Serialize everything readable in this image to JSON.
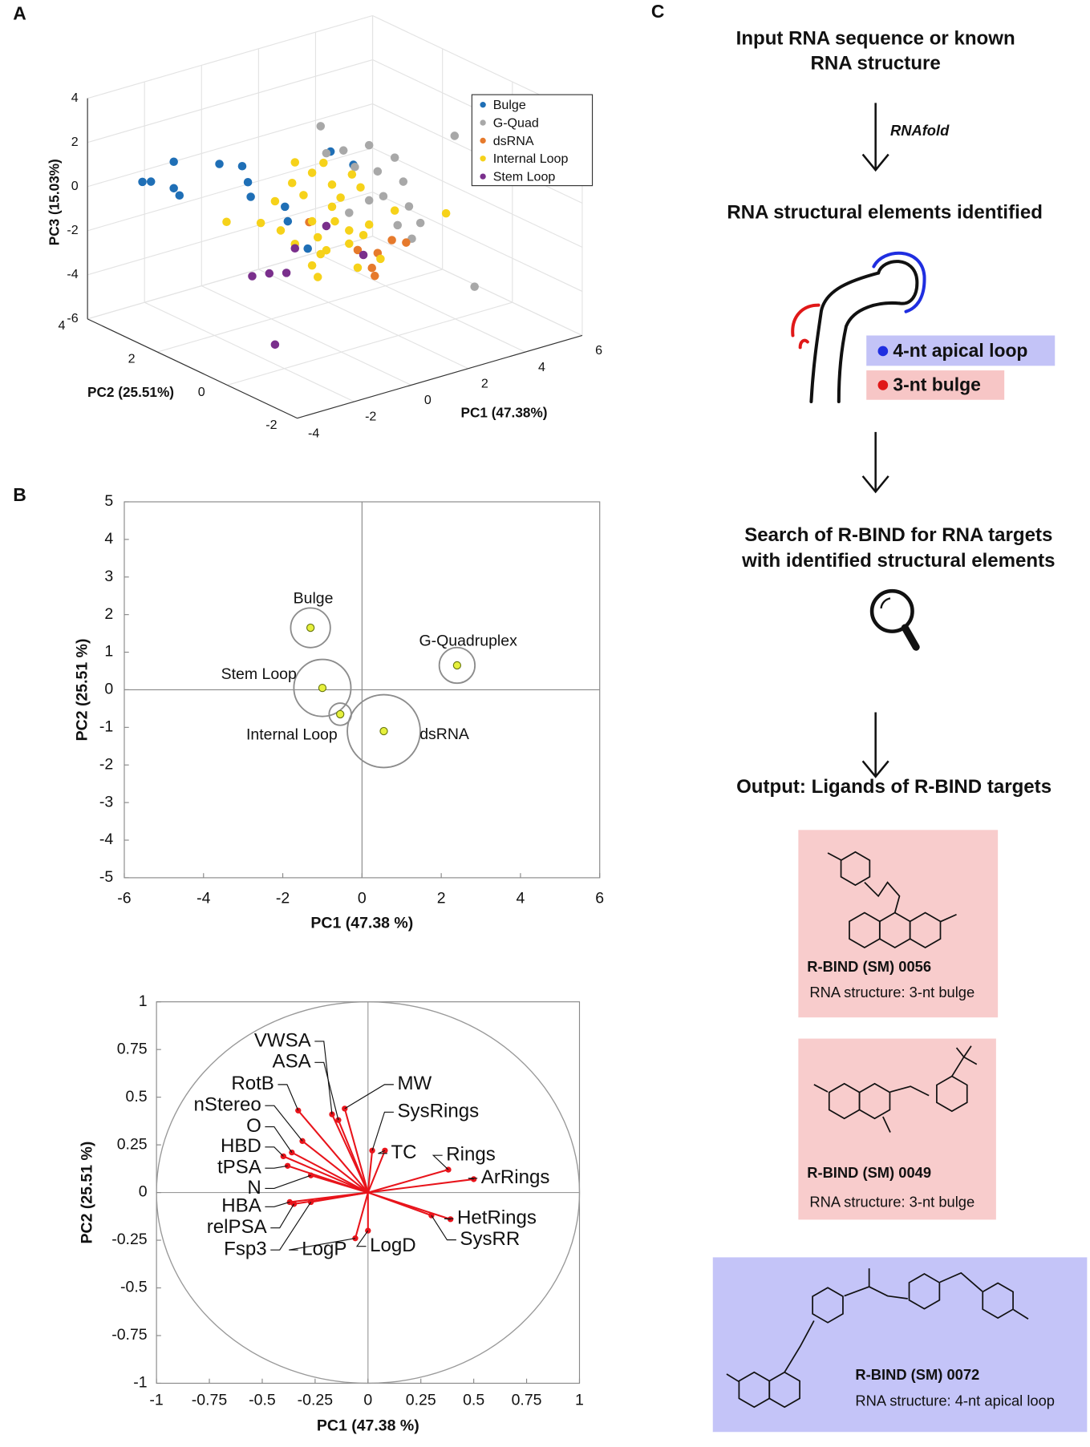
{
  "panel_labels": [
    "A",
    "B",
    "C"
  ],
  "chart_data": [
    {
      "type": "scatter3d",
      "xlabel": "PC1 (47.38%)",
      "ylabel": "PC2 (25.51%)",
      "zlabel": "PC3 (15.03%)",
      "xlim": [
        -4,
        6
      ],
      "ylim": [
        -2,
        4
      ],
      "zlim": [
        -6,
        4
      ],
      "xticks": [
        -4,
        -2,
        0,
        2,
        4,
        6
      ],
      "yticks": [
        -2,
        0,
        2,
        4
      ],
      "zticks": [
        -6,
        -4,
        -2,
        0,
        2,
        4
      ],
      "grid": true,
      "legend": "upper right",
      "series": [
        {
          "name": "Bulge",
          "color": "#1f6fb6",
          "x": [
            -3.3,
            -3.0,
            -2.2,
            -2.2,
            -2.0,
            -0.6,
            0.2,
            0.4,
            0.5,
            1.7,
            1.8,
            2.5,
            3.3,
            4.1
          ],
          "y": [
            3,
            3,
            3,
            3,
            3,
            3,
            3,
            3,
            3,
            3,
            3,
            3,
            3,
            3
          ],
          "z": [
            0.7,
            0.6,
            1.2,
            0.0,
            -0.4,
            0.5,
            0.1,
            -0.7,
            -1.4,
            -2.3,
            -3.0,
            -4.5,
            -0.4,
            -1.3
          ]
        },
        {
          "name": "G-Quad",
          "color": "#a8a8a8",
          "x": [
            0.5,
            1.3,
            1.7,
            2.2,
            2.5,
            3.1,
            2.7,
            3.4,
            3.6,
            3.2,
            3.7,
            4.0,
            5.2,
            5.9,
            2.2,
            1.5,
            0.7
          ],
          "y": [
            1,
            1,
            1,
            1,
            1,
            1,
            1,
            1,
            1,
            1,
            1,
            1,
            1,
            1,
            1,
            1,
            1
          ],
          "z": [
            3.3,
            1.9,
            1.0,
            1.8,
            0.5,
            0.9,
            -0.7,
            -0.3,
            -1.5,
            -2.2,
            -3.0,
            -2.4,
            1.1,
            -6.0,
            -0.7,
            -1.0,
            2.0
          ]
        },
        {
          "name": "dsRNA",
          "color": "#e67a2c",
          "x": [
            3.0,
            3.5,
            2.5,
            2.3,
            2.4,
            1.8,
            0.1
          ],
          "y": [
            1,
            1,
            1,
            1,
            1,
            1,
            1
          ],
          "z": [
            -2.8,
            -3.1,
            -3.2,
            -3.8,
            -4.2,
            -2.8,
            -0.9
          ]
        },
        {
          "name": "Internal Loop",
          "color": "#f6d21a",
          "x": [
            -2.8,
            -1.6,
            -1.1,
            -0.5,
            -0.4,
            -0.1,
            0.2,
            0.4,
            0.5,
            0.9,
            0.9,
            1.0,
            1.2,
            1.5,
            1.6,
            1.9,
            2.0,
            2.2,
            0.7,
            1.5,
            -0.4,
            0.2,
            0.4,
            1.8,
            3.1,
            4.9,
            -0.9,
            0.2,
            0.6,
            2.6
          ],
          "y": [
            1,
            1,
            1,
            1,
            1,
            1,
            1,
            1,
            1,
            1,
            1,
            1,
            1,
            1,
            1,
            1,
            1,
            1,
            1,
            1,
            1,
            1,
            1,
            1,
            1,
            1,
            1,
            1,
            1,
            1
          ],
          "z": [
            0.2,
            -0.3,
            0.5,
            1.1,
            2.0,
            0.4,
            -0.9,
            -1.7,
            -2.5,
            0.5,
            -0.5,
            -1.2,
            -0.2,
            -1.8,
            0.7,
            0.0,
            -2.2,
            -1.8,
            -2.4,
            -2.4,
            -1.7,
            -2.9,
            -3.5,
            -3.6,
            -1.5,
            -2.3,
            -0.9,
            1.3,
            1.6,
            -3.5
          ]
        },
        {
          "name": "Stem Loop",
          "color": "#7a2f8c",
          "x": [
            -1.9,
            -1.3,
            -0.4,
            0.7,
            2.0,
            -1.1,
            -0.7
          ],
          "y": [
            1,
            1,
            1,
            1,
            1,
            1,
            1
          ],
          "z": [
            -2.6,
            -2.7,
            -1.9,
            -1.3,
            -3.1,
            -6.0,
            -2.9
          ]
        }
      ]
    },
    {
      "type": "bubble",
      "xlabel": "PC1 (47.38 %)",
      "ylabel": "PC2 (25.51 %)",
      "xlim": [
        -6,
        6
      ],
      "ylim": [
        -5,
        5
      ],
      "xticks": [
        -6,
        -4,
        -2,
        0,
        2,
        4,
        6
      ],
      "yticks": [
        -5,
        -4,
        -3,
        -2,
        -1,
        0,
        1,
        2,
        3,
        4,
        5
      ],
      "labels": [
        "Bulge",
        "G-Quadruplex",
        "Stem Loop",
        "Internal Loop",
        "dsRNA"
      ],
      "x": [
        -1.3,
        2.4,
        -1.0,
        -0.55,
        0.55
      ],
      "values": [
        1.65,
        0.65,
        0.05,
        -0.65,
        -1.1
      ],
      "sizes": [
        0.5,
        0.45,
        0.72,
        0.28,
        0.92
      ],
      "color": "#e6f03c",
      "ring_color": "#8c8c8c"
    },
    {
      "type": "loadings",
      "xlabel": "PC1 (47.38 %)",
      "ylabel": "PC2 (25.51 %)",
      "xlim": [
        -1,
        1
      ],
      "ylim": [
        -1,
        1
      ],
      "xticks": [
        -1,
        -0.75,
        -0.5,
        -0.25,
        0,
        0.25,
        0.5,
        0.75,
        1
      ],
      "yticks": [
        -1,
        -0.75,
        -0.5,
        -0.25,
        0,
        0.25,
        0.5,
        0.75,
        1
      ],
      "labels": [
        "VWSA",
        "ASA",
        "MW",
        "RotB",
        "nStereo",
        "O",
        "HBD",
        "tPSA",
        "N",
        "HBA",
        "relPSA",
        "Fsp3",
        "SysRings",
        "TC",
        "Rings",
        "ArRings",
        "HetRings",
        "SysRR",
        "LogP",
        "LogD"
      ],
      "x": [
        -0.17,
        -0.14,
        -0.11,
        -0.33,
        -0.31,
        -0.36,
        -0.4,
        -0.38,
        -0.27,
        -0.37,
        -0.35,
        -0.27,
        0.02,
        0.08,
        0.38,
        0.5,
        0.39,
        0.3,
        -0.06,
        0.0
      ],
      "values": [
        0.41,
        0.38,
        0.44,
        0.43,
        0.27,
        0.21,
        0.19,
        0.14,
        0.09,
        -0.05,
        -0.06,
        -0.05,
        0.22,
        0.22,
        0.12,
        0.07,
        -0.14,
        -0.12,
        -0.24,
        -0.2
      ],
      "color": "#e8141b"
    }
  ],
  "workflow": {
    "step1": [
      "Input RNA sequence or known",
      "RNA structure"
    ],
    "tool": "RNAfold",
    "step2": "RNA structural elements identified",
    "elements": [
      "4-nt apical loop",
      "3-nt bulge"
    ],
    "step3": [
      "Search of R-BIND for RNA targets",
      "with identified structural elements"
    ],
    "step4": "Output: Ligands of R-BIND targets",
    "ligands": [
      {
        "id": "R-BIND (SM) 0056",
        "structure": "RNA structure: 3-nt bulge"
      },
      {
        "id": "R-BIND (SM) 0049",
        "structure": "RNA structure: 3-nt bulge"
      },
      {
        "id": "R-BIND (SM) 0072",
        "structure": "RNA structure: 4-nt apical loop"
      }
    ]
  }
}
